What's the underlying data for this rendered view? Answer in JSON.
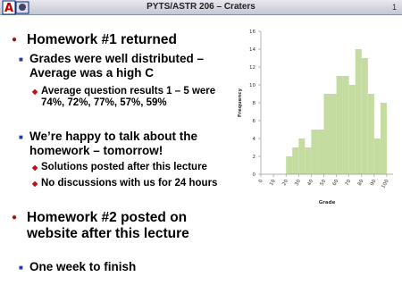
{
  "header": {
    "title": "PYTS/ASTR 206 – Craters",
    "page_number": "1"
  },
  "bullets": [
    {
      "level": 1,
      "text": "Homework #1 returned"
    },
    {
      "level": 2,
      "text": "Grades were well distributed – Average was a high C"
    },
    {
      "level": 3,
      "text": "Average question results 1 – 5 were 74%, 72%, 77%, 57%, 59%"
    },
    {
      "level": 2,
      "text": "We’re happy to talk about the homework – tomorrow!"
    },
    {
      "level": 3,
      "text": "Solutions posted after this lecture"
    },
    {
      "level": 3,
      "text": "No discussions with us for 24 hours"
    },
    {
      "level": 1,
      "text": "Homework #2 posted on website after this lecture"
    },
    {
      "level": 2,
      "text": "One week to finish"
    }
  ],
  "chart_data": {
    "type": "histogram",
    "xlabel": "Grade",
    "ylabel": "Frequency",
    "bins": [
      20,
      25,
      30,
      35,
      40,
      45,
      50,
      55,
      60,
      65,
      70,
      75,
      80,
      85,
      90,
      95,
      100
    ],
    "values": [
      2,
      3,
      4,
      3,
      5,
      5,
      9,
      9,
      11,
      11,
      10,
      14,
      13,
      9,
      4,
      8
    ],
    "color": "#c5dca0",
    "xlim": [
      0,
      105
    ],
    "xticks": [
      0,
      10,
      20,
      30,
      40,
      50,
      60,
      70,
      80,
      90,
      100
    ],
    "ylim": [
      0,
      16
    ],
    "yticks": [
      0,
      2,
      4,
      6,
      8,
      10,
      12,
      14,
      16
    ]
  }
}
